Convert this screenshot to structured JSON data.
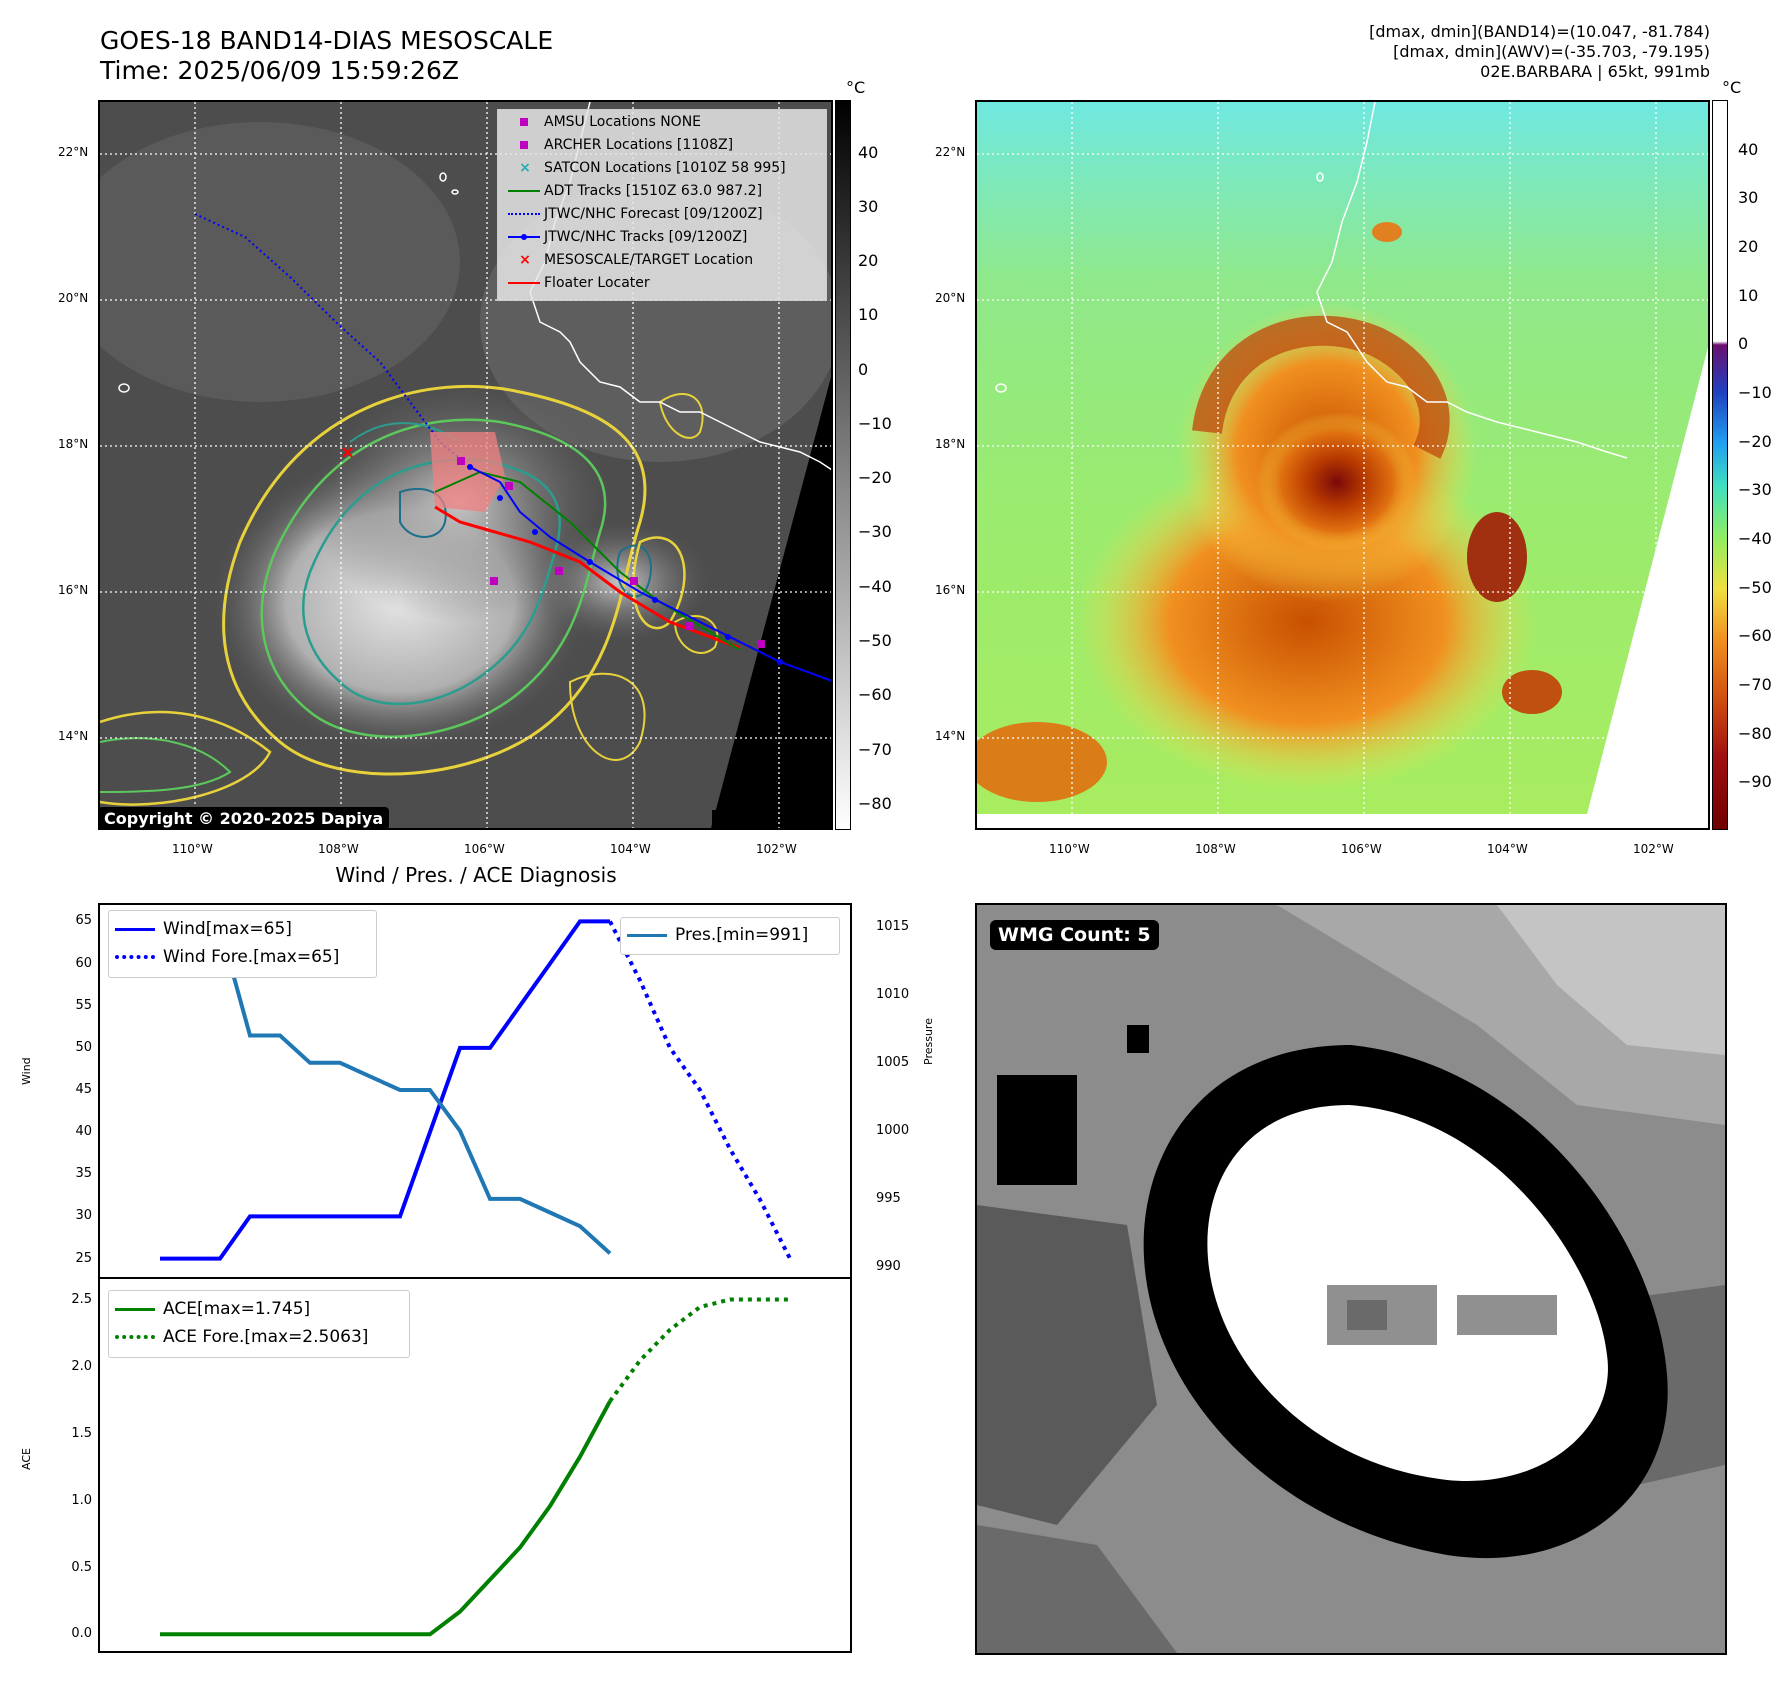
{
  "header": {
    "title_line1": "GOES-18 BAND14-DIAS MESOSCALE",
    "title_line2": "Time: 2025/06/09 15:59:26Z",
    "info_line1": "[dmax, dmin](BAND14)=(10.047, -81.784)",
    "info_line2": "[dmax, dmin](AWV)=(-35.703, -79.195)",
    "info_line3": "02E.BARBARA | 65kt, 991mb"
  },
  "map_ticks": {
    "lat": [
      "22°N",
      "20°N",
      "18°N",
      "16°N",
      "14°N"
    ],
    "lon": [
      "110°W",
      "108°W",
      "106°W",
      "104°W",
      "102°W"
    ]
  },
  "left_map": {
    "copyright": "Copyright © 2020-2025 Dapiya",
    "colorbar_unit": "°C",
    "colorbar_ticks": [
      "40",
      "30",
      "20",
      "10",
      "0",
      "−10",
      "−20",
      "−30",
      "−40",
      "−50",
      "−60",
      "−70",
      "−80"
    ],
    "legend": [
      {
        "label": "AMSU Locations NONE",
        "color": "#c000c0"
      },
      {
        "label": "ARCHER Locations [1108Z]",
        "color": "#c000c0"
      },
      {
        "label": "SATCON Locations [1010Z 58 995]",
        "color": "#20b0b0"
      },
      {
        "label": "ADT Tracks [1510Z 63.0 987.2]",
        "color": "#008000"
      },
      {
        "label": "JTWC/NHC Forecast [09/1200Z]",
        "color": "#0000ff"
      },
      {
        "label": "JTWC/NHC Tracks [09/1200Z]",
        "color": "#0000ff"
      },
      {
        "label": "MESOSCALE/TARGET Location",
        "color": "#ff0000"
      },
      {
        "label": "Floater Locater",
        "color": "#ff0000"
      }
    ]
  },
  "right_map": {
    "colorbar_unit": "°C",
    "colorbar_ticks": [
      "40",
      "30",
      "20",
      "10",
      "0",
      "−10",
      "−20",
      "−30",
      "−40",
      "−50",
      "−60",
      "−70",
      "−80",
      "−90"
    ]
  },
  "diagnosis": {
    "title": "Wind / Pres. / ACE Diagnosis",
    "wind_axis_label": "Wind",
    "pressure_axis_label": "Pressure",
    "ace_axis_label": "ACE",
    "wind_ticks": [
      "65",
      "60",
      "55",
      "50",
      "45",
      "40",
      "35",
      "30",
      "25"
    ],
    "pressure_ticks": [
      "1015",
      "1010",
      "1005",
      "1000",
      "995",
      "990"
    ],
    "ace_ticks": [
      "2.5",
      "2.0",
      "1.5",
      "1.0",
      "0.5",
      "0.0"
    ],
    "legend_wind": "Wind[max=65]",
    "legend_wind_fore": "Wind Fore.[max=65]",
    "legend_pres": "Pres.[min=991]",
    "legend_ace": "ACE[max=1.745]",
    "legend_ace_fore": "ACE Fore.[max=2.5063]"
  },
  "wmg": {
    "label": "WMG Count: 5"
  },
  "chart_data": [
    {
      "type": "line",
      "title": "Wind / Pres. / ACE Diagnosis",
      "ylabel": "Wind",
      "ylim": [
        24,
        66
      ],
      "series": [
        {
          "name": "Wind[max=65]",
          "x": [
            0,
            1,
            2,
            3,
            4,
            5,
            6,
            7,
            8,
            9,
            10,
            11,
            12,
            13,
            14,
            15
          ],
          "values": [
            25,
            25,
            25,
            30,
            30,
            30,
            30,
            30,
            30,
            40,
            50,
            50,
            55,
            60,
            65,
            65
          ],
          "color": "#0000ff",
          "style": "solid"
        },
        {
          "name": "Wind Fore.[max=65]",
          "x": [
            15,
            16,
            17,
            18,
            19,
            20,
            21
          ],
          "values": [
            65,
            58,
            50,
            45,
            38,
            32,
            25
          ],
          "color": "#0000ff",
          "style": "dotted"
        }
      ]
    },
    {
      "type": "line",
      "ylabel": "Pressure",
      "ylim": [
        990,
        1016
      ],
      "series": [
        {
          "name": "Pres.[min=991]",
          "x": [
            0,
            1,
            2,
            3,
            4,
            5,
            6,
            7,
            8,
            9,
            10,
            11,
            12,
            13,
            14,
            15
          ],
          "values": [
            1015,
            1015,
            1015,
            1007,
            1007,
            1005,
            1005,
            1004,
            1003,
            1003,
            1000,
            995,
            995,
            994,
            993,
            991
          ],
          "color": "#1f77b4",
          "style": "solid"
        }
      ]
    },
    {
      "type": "line",
      "ylabel": "ACE",
      "ylim": [
        -0.05,
        2.6
      ],
      "series": [
        {
          "name": "ACE[max=1.745]",
          "x": [
            0,
            1,
            2,
            3,
            4,
            5,
            6,
            7,
            8,
            9,
            10,
            11,
            12,
            13,
            14,
            15
          ],
          "values": [
            0,
            0,
            0,
            0,
            0,
            0,
            0,
            0,
            0,
            0,
            0.17,
            0.41,
            0.65,
            0.96,
            1.33,
            1.745
          ],
          "color": "#008000",
          "style": "solid"
        },
        {
          "name": "ACE Fore.[max=2.5063]",
          "x": [
            15,
            16,
            17,
            18,
            19,
            20,
            21
          ],
          "values": [
            1.745,
            2.05,
            2.28,
            2.45,
            2.5063,
            2.5063,
            2.5063
          ],
          "color": "#008000",
          "style": "dotted"
        }
      ]
    }
  ],
  "colors": {
    "wind": "#0000ff",
    "pressure": "#1f77b4",
    "ace": "#008000"
  }
}
